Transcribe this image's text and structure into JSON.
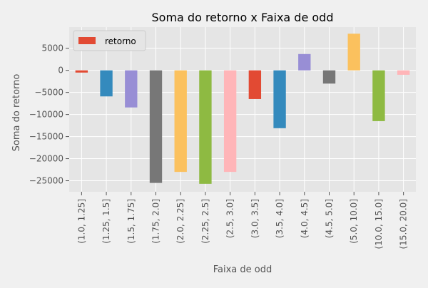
{
  "chart_data": {
    "type": "bar",
    "title": "Soma do retorno x Faixa de odd",
    "xlabel": "Faixa de odd",
    "ylabel": "Soma do retorno",
    "categories": [
      "(1.0, 1.25]",
      "(1.25, 1.5]",
      "(1.5, 1.75]",
      "(1.75, 2.0]",
      "(2.0, 2.25]",
      "(2.25, 2.5]",
      "(2.5, 3.0]",
      "(3.0, 3.5]",
      "(3.5, 4.0]",
      "(4.0, 4.5]",
      "(4.5, 5.0]",
      "(5.0, 10.0]",
      "(10.0, 15.0]",
      "(15.0, 20.0]"
    ],
    "series": [
      {
        "name": "retorno",
        "values": [
          -500,
          -5900,
          -8400,
          -25500,
          -23000,
          -25700,
          -23000,
          -6500,
          -13100,
          3700,
          -3000,
          8300,
          -11500,
          -1000
        ]
      }
    ],
    "ylim": [
      -27500,
      9800
    ],
    "yticks": [
      5000,
      0,
      -5000,
      -10000,
      -15000,
      -20000,
      -25000
    ],
    "ytick_labels": [
      "5000",
      "0",
      "−5000",
      "−10000",
      "−15000",
      "−20000",
      "−25000"
    ],
    "grid": true,
    "legend_position": "top-left",
    "colors": [
      "#e24a33",
      "#348abd",
      "#988ed5",
      "#777777",
      "#fbc15e",
      "#8eba42",
      "#ffb5b8"
    ],
    "legend_color": "#e24a33",
    "style": {
      "background": "#e5e5e5",
      "grid_color": "#ffffff",
      "text_color": "#555555"
    }
  }
}
